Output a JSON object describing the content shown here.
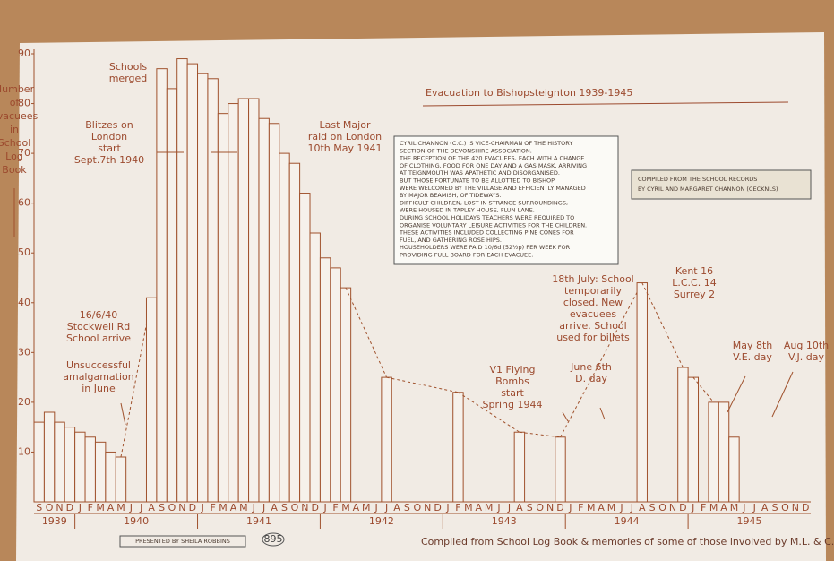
{
  "chart_data": {
    "type": "bar",
    "title": "Evacuation to Bishopsteignton 1939-1945",
    "y_label_lines": [
      "Number",
      "of",
      "Evacuees",
      "in",
      "School",
      "Log",
      "Book"
    ],
    "categories": [
      "S",
      "O",
      "N",
      "D",
      "J",
      "F",
      "M",
      "A",
      "M",
      "J",
      "J",
      "A",
      "S",
      "O",
      "N",
      "D",
      "J",
      "F",
      "M",
      "A",
      "M",
      "J",
      "J",
      "A",
      "S",
      "O",
      "N",
      "D",
      "J",
      "F",
      "M",
      "A",
      "M",
      "J",
      "J",
      "A",
      "S",
      "O",
      "N",
      "D",
      "J",
      "F",
      "M",
      "A",
      "M",
      "J",
      "J",
      "A",
      "S",
      "O",
      "N",
      "D",
      "J",
      "F",
      "M",
      "A",
      "M",
      "J",
      "J",
      "A",
      "S",
      "O",
      "N",
      "D",
      "J",
      "F",
      "M",
      "A",
      "M",
      "J",
      "J",
      "A",
      "S",
      "O",
      "N",
      "D"
    ],
    "values": [
      16,
      18,
      16,
      15,
      14,
      13,
      12,
      10,
      9,
      null,
      null,
      41,
      87,
      83,
      89,
      88,
      86,
      85,
      78,
      80,
      81,
      81,
      77,
      76,
      70,
      68,
      62,
      54,
      49,
      47,
      43,
      null,
      null,
      null,
      25,
      null,
      null,
      null,
      null,
      null,
      null,
      22,
      null,
      null,
      null,
      null,
      null,
      14,
      null,
      null,
      null,
      13,
      null,
      null,
      null,
      null,
      null,
      null,
      null,
      44,
      null,
      null,
      null,
      27,
      25,
      null,
      20,
      20,
      13,
      null,
      null,
      null,
      null,
      null,
      null,
      null
    ],
    "years": [
      "1939",
      "1940",
      "1941",
      "1942",
      "1943",
      "1944",
      "1945"
    ],
    "color": "#a0522d",
    "ylim": [
      0,
      90
    ],
    "yticks": [
      10,
      20,
      30,
      40,
      50,
      60,
      70,
      80,
      90
    ],
    "annotations": [
      {
        "lines": [
          "Schools",
          "merged"
        ]
      },
      {
        "lines": [
          "Blitzes on",
          "London",
          "start",
          "Sept.7th 1940"
        ]
      },
      {
        "lines": [
          "Last Major",
          "raid on London",
          "10th May 1941"
        ]
      },
      {
        "lines": [
          "16/6/40",
          "Stockwell Rd",
          "School arrive"
        ]
      },
      {
        "lines": [
          "Unsuccessful",
          "amalgamation",
          "in June"
        ]
      },
      {
        "lines": [
          "V1 Flying",
          "Bombs",
          "start",
          "Spring 1944"
        ]
      },
      {
        "lines": [
          "June 6th",
          "D. day"
        ]
      },
      {
        "lines": [
          "18th July: School",
          "temporarily",
          "closed. New",
          "evacuees",
          "arrive. School",
          "used for billets"
        ]
      },
      {
        "lines": [
          "Kent 16",
          "L.C.C. 14",
          "Surrey 2"
        ]
      },
      {
        "lines": [
          "May 8th",
          "V.E. day"
        ]
      },
      {
        "lines": [
          "Aug 10th",
          "V.J. day"
        ]
      }
    ],
    "note_box": {
      "lines": [
        "CYRIL CHANNON (C.C.) IS VICE-CHAIRMAN OF THE HISTORY",
        "SECTION OF THE DEVONSHIRE ASSOCIATION.",
        "THE RECEPTION OF THE 420 EVACUEES, EACH WITH A CHANGE",
        "OF CLOTHING, FOOD FOR ONE DAY AND A GAS MASK, ARRIVING",
        "AT TEIGNMOUTH WAS APATHETIC AND DISORGANISED.",
        "BUT THOSE FORTUNATE TO BE ALLOTTED TO BISHOP",
        "WERE WELCOMED BY THE VILLAGE AND EFFICIENTLY MANAGED",
        "BY MAJOR BEAMISH, OF TIDEWAYS.",
        "DIFFICULT CHILDREN, LOST IN STRANGE SURROUNDINGS,",
        "WERE HOUSED IN TAPLEY HOUSE, FLUN LANE.",
        "DURING SCHOOL HOLIDAYS TEACHERS WERE REQUIRED TO",
        "ORGANISE VOLUNTARY LEISURE ACTIVITIES FOR THE CHILDREN.",
        "THESE ACTIVITIES INCLUDED COLLECTING PINE CONES FOR",
        "FUEL, AND GATHERING ROSE HIPS.",
        "HOUSEHOLDERS WERE PAID 10/6d (52½p) PER WEEK FOR",
        "PROVIDING FULL BOARD FOR EACH EVACUEE."
      ]
    },
    "compiled_box": {
      "lines": [
        "COMPILED FROM THE SCHOOL RECORDS",
        "BY CYRIL AND MARGARET CHANNON (CECKNLS)"
      ]
    },
    "presented_by": "PRESENTED BY SHEILA ROBBINS",
    "number": "895",
    "footer": "Compiled from School Log Book & memories of some of those involved by M.L. & C.E.C."
  }
}
